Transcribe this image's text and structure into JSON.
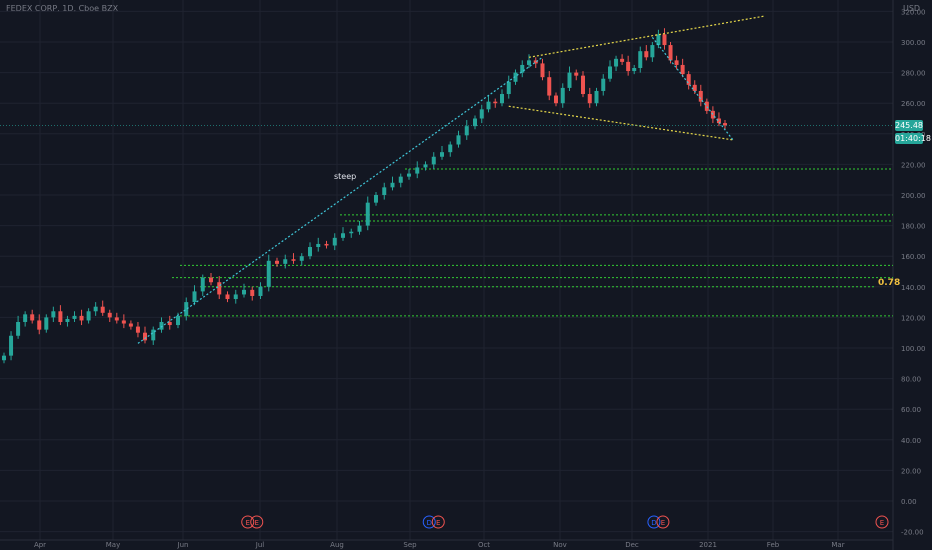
{
  "header": {
    "title": "FEDEX CORP, 1D, Cboe BZX",
    "currency": "USD"
  },
  "price_badge": {
    "price": "245.48",
    "countdown": "01:40:18",
    "color": "#26a69a"
  },
  "colors": {
    "background": "#131722",
    "grid": "#1f2330",
    "up": "#26a69a",
    "down": "#ef5350",
    "support_lines": "#33cc33",
    "wedge_lines": "#e6d84a",
    "trend_lines": "#3fc6d8",
    "fib_label": "#f0c040"
  },
  "annotations": {
    "steep": "steep",
    "fib": "0.78"
  },
  "chart_data": {
    "type": "candlestick",
    "title": "FEDEX CORP, 1D, Cboe BZX",
    "xlabel": "",
    "ylabel": "",
    "y_ticks": [
      "320.00",
      "300.00",
      "280.00",
      "260.00",
      "240.00",
      "220.00",
      "200.00",
      "180.00",
      "160.00",
      "140.00",
      "120.00",
      "100.00",
      "80.00",
      "60.00",
      "40.00",
      "20.00",
      "0.00",
      "-20.00"
    ],
    "x_ticks": [
      "Apr",
      "May",
      "Jun",
      "Jul",
      "Aug",
      "Sep",
      "Oct",
      "Nov",
      "Dec",
      "2021",
      "Feb",
      "Mar"
    ],
    "ylim": [
      -20,
      325
    ],
    "grid": true,
    "last_price": 245.48,
    "series": [
      {
        "name": "price",
        "points": [
          [
            0,
            95
          ],
          [
            1,
            108
          ],
          [
            2,
            117
          ],
          [
            3,
            122
          ],
          [
            4,
            118
          ],
          [
            5,
            112
          ],
          [
            6,
            120
          ],
          [
            7,
            124
          ],
          [
            8,
            117
          ],
          [
            9,
            119
          ],
          [
            10,
            121
          ],
          [
            11,
            118
          ],
          [
            12,
            124
          ],
          [
            13,
            127
          ],
          [
            14,
            123
          ],
          [
            15,
            120
          ],
          [
            16,
            118
          ],
          [
            17,
            116
          ],
          [
            18,
            114
          ],
          [
            19,
            110
          ],
          [
            20,
            105
          ],
          [
            21,
            112
          ],
          [
            22,
            117
          ],
          [
            23,
            115
          ],
          [
            24,
            121
          ],
          [
            25,
            130
          ],
          [
            26,
            137
          ],
          [
            27,
            146
          ],
          [
            28,
            143
          ],
          [
            29,
            135
          ],
          [
            30,
            132
          ],
          [
            31,
            135
          ],
          [
            32,
            138
          ],
          [
            33,
            134
          ],
          [
            34,
            140
          ],
          [
            35,
            157
          ],
          [
            36,
            155
          ],
          [
            37,
            158
          ],
          [
            38,
            157
          ],
          [
            39,
            160
          ],
          [
            40,
            166
          ],
          [
            41,
            168
          ],
          [
            42,
            167
          ],
          [
            43,
            172
          ],
          [
            44,
            175
          ],
          [
            45,
            176
          ],
          [
            46,
            180
          ],
          [
            47,
            195
          ],
          [
            48,
            200
          ],
          [
            49,
            205
          ],
          [
            50,
            208
          ],
          [
            51,
            212
          ],
          [
            52,
            214
          ],
          [
            53,
            218
          ],
          [
            54,
            220
          ],
          [
            55,
            225
          ],
          [
            56,
            228
          ],
          [
            57,
            233
          ],
          [
            58,
            239
          ],
          [
            59,
            245
          ],
          [
            60,
            250
          ],
          [
            61,
            256
          ],
          [
            62,
            261
          ],
          [
            63,
            260
          ],
          [
            64,
            266
          ],
          [
            65,
            274
          ],
          [
            66,
            280
          ],
          [
            67,
            285
          ],
          [
            68,
            288
          ],
          [
            69,
            286
          ],
          [
            70,
            277
          ],
          [
            71,
            265
          ],
          [
            72,
            260
          ],
          [
            73,
            270
          ],
          [
            74,
            280
          ],
          [
            75,
            278
          ],
          [
            76,
            266
          ],
          [
            77,
            260
          ],
          [
            78,
            268
          ],
          [
            79,
            276
          ],
          [
            80,
            284
          ],
          [
            81,
            289
          ],
          [
            82,
            287
          ],
          [
            83,
            281
          ],
          [
            84,
            283
          ],
          [
            85,
            294
          ],
          [
            86,
            290
          ],
          [
            87,
            298
          ],
          [
            88,
            305
          ],
          [
            89,
            298
          ],
          [
            90,
            288
          ],
          [
            91,
            285
          ],
          [
            92,
            279
          ],
          [
            93,
            272
          ],
          [
            94,
            268
          ],
          [
            95,
            261
          ],
          [
            96,
            255
          ],
          [
            97,
            250
          ],
          [
            98,
            247
          ],
          [
            99,
            245.48
          ]
        ]
      }
    ],
    "horizontal_levels": [
      217,
      187,
      183,
      154,
      146,
      121
    ],
    "wedge": {
      "upper": [
        [
          68,
          290
        ],
        [
          104,
          317
        ]
      ],
      "lower": [
        [
          65,
          258
        ],
        [
          100,
          236
        ]
      ]
    },
    "channel": [
      [
        19,
        103
      ],
      [
        70,
        290
      ]
    ],
    "falling_line": [
      [
        87,
        303
      ],
      [
        100,
        236
      ]
    ],
    "fib_level": {
      "label": "0.78",
      "value": 140
    },
    "event_markers": [
      {
        "x": 33,
        "labels": [
          "E",
          "E"
        ]
      },
      {
        "x": 55,
        "labels": [
          "D",
          "E"
        ]
      },
      {
        "x": 88,
        "labels": [
          "D",
          "E"
        ]
      },
      {
        "x": 117,
        "labels": [
          "E"
        ]
      }
    ]
  }
}
